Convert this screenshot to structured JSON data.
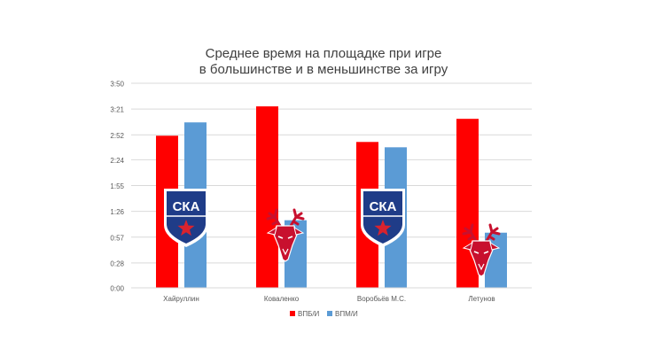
{
  "chart_data": {
    "type": "bar",
    "title_lines": [
      "Среднее время на площадке при игре",
      "в большинстве и в меньшинстве за игру"
    ],
    "categories": [
      "Хайруллин",
      "Коваленко",
      "Воробьёв М.С.",
      "Летунов"
    ],
    "series": [
      {
        "name": "ВПБ/И",
        "color": "#ff0000",
        "values": [
          171,
          204,
          164,
          190
        ]
      },
      {
        "name": "ВПМ/И",
        "color": "#5b9bd5",
        "values": [
          186,
          76,
          158,
          62
        ]
      }
    ],
    "y_unit": "seconds",
    "ylim": [
      0,
      230
    ],
    "y_ticks": [
      0,
      28,
      57,
      86,
      115,
      144,
      172,
      201,
      230
    ],
    "y_tick_labels": [
      "0:00",
      "0:28",
      "0:57",
      "1:26",
      "1:55",
      "2:24",
      "2:52",
      "3:21",
      "3:50"
    ],
    "grid": true,
    "legend_position": "bottom-center",
    "bar_logos": [
      "ska-shield",
      "deer-head",
      "ska-shield",
      "deer-head"
    ],
    "logo_text": "СКА",
    "colors": {
      "ska_shield_blue": "#1f3c88",
      "ska_star_red": "#d9232e",
      "deer_red": "#c8102e",
      "axis": "#595959",
      "grid": "#d9d9d9"
    }
  }
}
